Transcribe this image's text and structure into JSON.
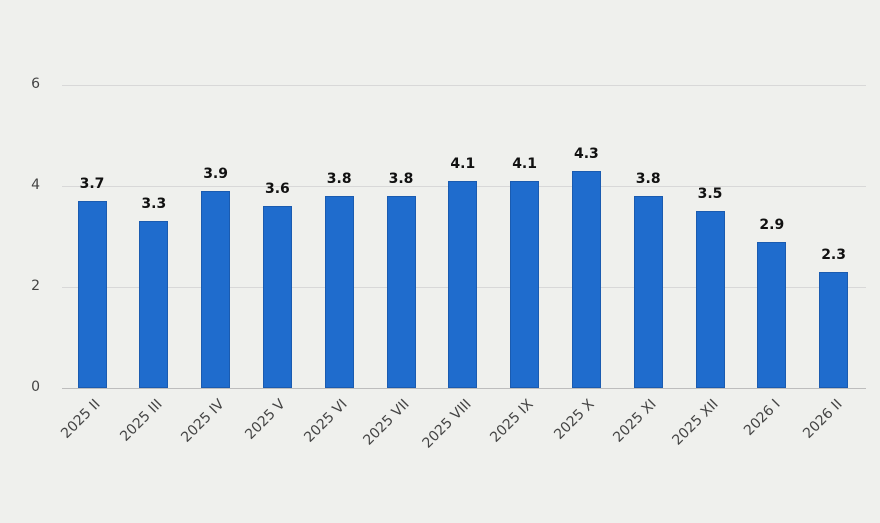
{
  "chart_data": {
    "type": "bar",
    "title": "",
    "xlabel": "",
    "ylabel": "",
    "categories": [
      "2025 II",
      "2025 III",
      "2025 IV",
      "2025 V",
      "2025 VI",
      "2025 VII",
      "2025 VIII",
      "2025 IX",
      "2025 X",
      "2025 XI",
      "2025 XII",
      "2026 I",
      "2026 II"
    ],
    "values": [
      3.7,
      3.3,
      3.9,
      3.6,
      3.8,
      3.8,
      4.1,
      4.1,
      4.3,
      3.8,
      3.5,
      2.9,
      2.3
    ],
    "value_labels": [
      "3.7",
      "3.3",
      "3.9",
      "3.6",
      "3.8",
      "3.8",
      "4.1",
      "4.1",
      "4.3",
      "3.8",
      "3.5",
      "2.9",
      "2.3"
    ],
    "yticks": [
      0,
      2,
      4,
      6
    ],
    "ylim": [
      0,
      6
    ],
    "grid": true,
    "legend": false,
    "bar_color": "#1f6ccd"
  }
}
